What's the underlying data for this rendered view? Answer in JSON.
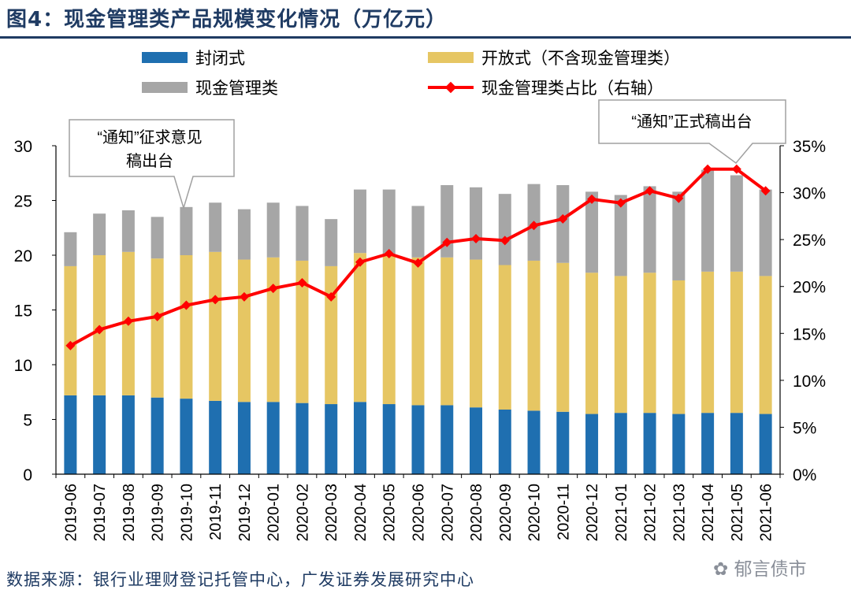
{
  "header": {
    "title": "图4：现金管理类产品规模变化情况（万亿元）"
  },
  "footer": {
    "source": "数据来源：银行业理财登记托管中心，广发证券发展研究中心",
    "watermark": "郁言债市"
  },
  "colors": {
    "closed": "#1f6fb0",
    "open": "#e6c663",
    "cash": "#a6a6a6",
    "ratio": "#ff0000",
    "title": "#1f3b63"
  },
  "legend": {
    "closed": "封闭式",
    "open": "开放式（不含现金管理类）",
    "cash": "现金管理类",
    "ratio": "现金管理类占比（右轴）"
  },
  "annotations": {
    "left": {
      "line1": "“通知”征求意见",
      "line2": "稿出台"
    },
    "right": {
      "line1": "“通知”正式稿出台"
    }
  },
  "chart_data": {
    "type": "bar",
    "stacked": true,
    "title": "现金管理类产品规模变化情况（万亿元）",
    "categories": [
      "2019-06",
      "2019-07",
      "2019-08",
      "2019-09",
      "2019-10",
      "2019-11",
      "2019-12",
      "2020-01",
      "2020-02",
      "2020-03",
      "2020-04",
      "2020-05",
      "2020-06",
      "2020-07",
      "2020-08",
      "2020-09",
      "2020-10",
      "2020-11",
      "2020-12",
      "2021-01",
      "2021-02",
      "2021-03",
      "2021-04",
      "2021-05",
      "2021-06"
    ],
    "series": [
      {
        "name": "封闭式",
        "values": [
          7.2,
          7.2,
          7.2,
          7.0,
          6.9,
          6.7,
          6.6,
          6.6,
          6.5,
          6.4,
          6.6,
          6.4,
          6.3,
          6.3,
          6.1,
          5.9,
          5.8,
          5.7,
          5.5,
          5.6,
          5.6,
          5.5,
          5.6,
          5.6,
          5.5
        ]
      },
      {
        "name": "开放式（不含现金管理类）",
        "values": [
          11.8,
          12.8,
          13.1,
          12.7,
          13.1,
          13.6,
          13.0,
          13.2,
          13.0,
          12.6,
          13.6,
          13.6,
          13.5,
          13.5,
          13.5,
          13.2,
          13.7,
          13.6,
          12.9,
          12.5,
          12.8,
          12.2,
          12.9,
          12.9,
          12.6
        ]
      },
      {
        "name": "现金管理类",
        "values": [
          3.1,
          3.8,
          3.8,
          3.8,
          4.4,
          4.5,
          4.6,
          5.0,
          5.0,
          4.3,
          5.8,
          6.0,
          4.7,
          6.6,
          6.6,
          6.5,
          7.0,
          7.1,
          7.4,
          7.4,
          7.9,
          8.1,
          9.3,
          8.8,
          7.9
        ]
      },
      {
        "name": "现金管理类占比（右轴）",
        "axis": "right",
        "type": "line",
        "values": [
          13.7,
          15.4,
          16.3,
          16.8,
          18.0,
          18.6,
          18.9,
          19.8,
          20.4,
          18.9,
          22.6,
          23.5,
          22.5,
          24.7,
          25.1,
          24.9,
          26.5,
          27.2,
          29.3,
          28.9,
          30.2,
          29.4,
          32.5,
          32.5,
          30.2
        ]
      }
    ],
    "xlabel": "",
    "ylabel": "",
    "ylim": [
      0,
      30
    ],
    "yticks": [
      0,
      5,
      10,
      15,
      20,
      25,
      30
    ],
    "ylim_right": [
      0,
      35
    ],
    "yticks_right": [
      "0%",
      "5%",
      "10%",
      "15%",
      "20%",
      "25%",
      "30%",
      "35%"
    ]
  }
}
